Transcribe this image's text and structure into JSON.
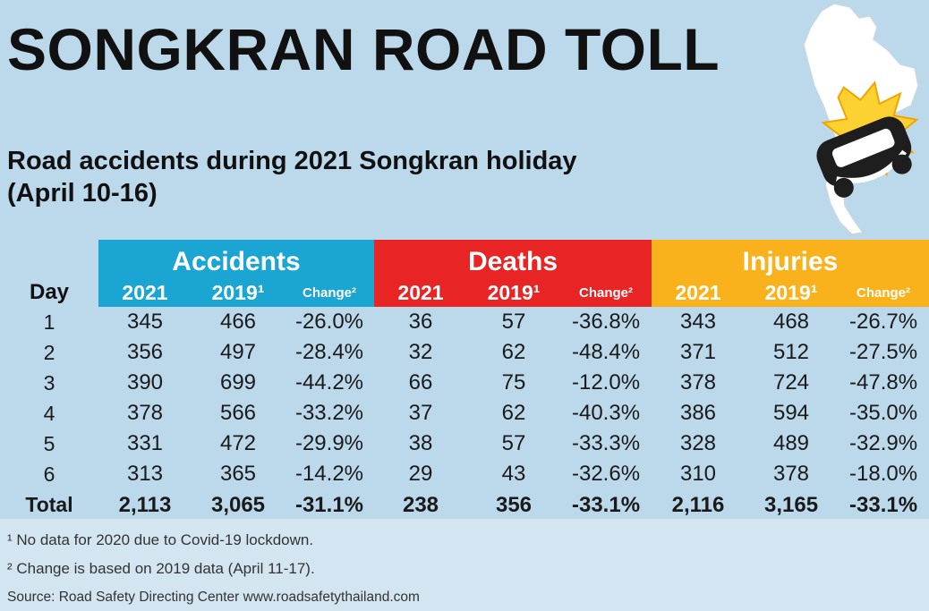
{
  "title": "SONGKRAN ROAD TOLL",
  "subtitle_line1": "Road accidents during 2021 Songkran holiday",
  "subtitle_line2": "(April 10-16)",
  "colors": {
    "background": "#bcd9ec",
    "accidents": "#1ba5d3",
    "deaths": "#e82424",
    "injuries": "#f9b21b",
    "footer": "#d4e5f2"
  },
  "chart_data": {
    "type": "table",
    "row_header": "Day",
    "groups": [
      "Accidents",
      "Deaths",
      "Injuries"
    ],
    "sub_columns": [
      "2021",
      "2019¹",
      "Change²"
    ],
    "rows": [
      {
        "day": "1",
        "cells": [
          "345",
          "466",
          "-26.0%",
          "36",
          "57",
          "-36.8%",
          "343",
          "468",
          "-26.7%"
        ]
      },
      {
        "day": "2",
        "cells": [
          "356",
          "497",
          "-28.4%",
          "32",
          "62",
          "-48.4%",
          "371",
          "512",
          "-27.5%"
        ]
      },
      {
        "day": "3",
        "cells": [
          "390",
          "699",
          "-44.2%",
          "66",
          "75",
          "-12.0%",
          "378",
          "724",
          "-47.8%"
        ]
      },
      {
        "day": "4",
        "cells": [
          "378",
          "566",
          "-33.2%",
          "37",
          "62",
          "-40.3%",
          "386",
          "594",
          "-35.0%"
        ]
      },
      {
        "day": "5",
        "cells": [
          "331",
          "472",
          "-29.9%",
          "38",
          "57",
          "-33.3%",
          "328",
          "489",
          "-32.9%"
        ]
      },
      {
        "day": "6",
        "cells": [
          "313",
          "365",
          "-14.2%",
          "29",
          "43",
          "-32.6%",
          "310",
          "378",
          "-18.0%"
        ]
      }
    ],
    "total": {
      "day": "Total",
      "cells": [
        "2,113",
        "3,065",
        "-31.1%",
        "238",
        "356",
        "-33.1%",
        "2,116",
        "3,165",
        "-33.1%"
      ]
    }
  },
  "notes": {
    "note1": "¹ No data for 2020 due to Covid-19 lockdown.",
    "note2": "² Change is based on 2019 data (April 11-17).",
    "source": "Source: Road Safety Directing Center www.roadsafetythailand.com"
  },
  "icons": {
    "map": "thailand-map-icon",
    "car": "crashed-car-icon"
  }
}
